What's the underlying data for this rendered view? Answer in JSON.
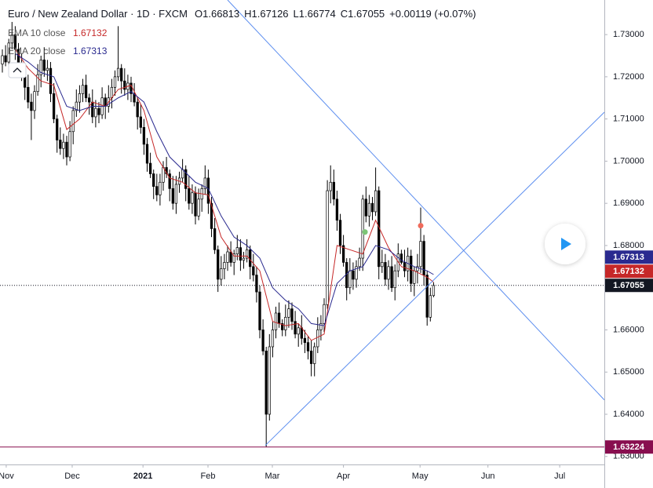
{
  "chart_data": {
    "type": "candlestick",
    "title": "Euro / New Zealand Dollar · 1D · FXCM",
    "ohlc_prefixes": [
      "O",
      "H",
      "L",
      "C"
    ],
    "change": "+0.00119 (+0.07%)",
    "xlim": [
      -0.732,
      187.07
    ],
    "ylim": [
      1.6281,
      1.7382
    ],
    "xticks": [
      {
        "value": 1.2,
        "label": "Nov"
      },
      {
        "value": 21.7,
        "label": "Dec"
      },
      {
        "value": 43.7,
        "label": "2021"
      },
      {
        "value": 63.9,
        "label": "Feb"
      },
      {
        "value": 83.9,
        "label": "Mar"
      },
      {
        "value": 106,
        "label": "Apr"
      },
      {
        "value": 129.8,
        "label": "May"
      },
      {
        "value": 150.9,
        "label": "Jun"
      },
      {
        "value": 173.2,
        "label": "Jul"
      }
    ],
    "yticks": [
      {
        "value": 1.63,
        "label": "1.63000"
      },
      {
        "value": 1.64,
        "label": "1.64000"
      },
      {
        "value": 1.65,
        "label": "1.65000"
      },
      {
        "value": 1.66,
        "label": "1.66000"
      },
      {
        "value": 1.67,
        "label": "1.67000"
      },
      {
        "value": 1.68,
        "label": "1.68000"
      },
      {
        "value": 1.69,
        "label": "1.69000"
      },
      {
        "value": 1.7,
        "label": "1.70000"
      },
      {
        "value": 1.71,
        "label": "1.71000"
      },
      {
        "value": 1.72,
        "label": "1.72000"
      },
      {
        "value": 1.73,
        "label": "1.73000"
      }
    ],
    "up_color": "#ffffff",
    "down_color": "#000000",
    "outline_color": "#000000",
    "candles": {
      "open": [
        1.723,
        1.725,
        1.7235,
        1.728,
        1.73,
        1.7265,
        1.723,
        1.72,
        1.7175,
        1.714,
        1.712,
        1.7165,
        1.7205,
        1.724,
        1.7215,
        1.722,
        1.716,
        1.71,
        1.705,
        1.703,
        1.7045,
        1.701,
        1.707,
        1.712,
        1.714,
        1.716,
        1.718,
        1.715,
        1.714,
        1.7105,
        1.7125,
        1.711,
        1.715,
        1.713,
        1.715,
        1.7175,
        1.72,
        1.722,
        1.719,
        1.717,
        1.7185,
        1.716,
        1.714,
        1.7105,
        1.708,
        1.704,
        1.6995,
        1.697,
        1.694,
        1.692,
        1.695,
        1.6985,
        1.697,
        1.6935,
        1.69,
        1.6945,
        1.696,
        1.698,
        1.6935,
        1.69,
        1.6925,
        1.687,
        1.691,
        1.6935,
        1.696,
        1.69,
        1.684,
        1.679,
        1.672,
        1.6745,
        1.676,
        1.6785,
        1.676,
        1.678,
        1.6795,
        1.6765,
        1.677,
        1.679,
        1.675,
        1.673,
        1.669,
        1.66,
        1.655,
        1.64,
        1.656,
        1.66,
        1.664,
        1.6615,
        1.66,
        1.663,
        1.665,
        1.662,
        1.659,
        1.6605,
        1.658,
        1.657,
        1.655,
        1.652,
        1.656,
        1.66,
        1.6615,
        1.666,
        1.693,
        1.695,
        1.691,
        1.686,
        1.68,
        1.676,
        1.67,
        1.674,
        1.672,
        1.675,
        1.677,
        1.691,
        1.687,
        1.69,
        1.688,
        1.693,
        1.675,
        1.676,
        1.672,
        1.675,
        1.67,
        1.674,
        1.678,
        1.676,
        1.674,
        1.6775,
        1.671,
        1.674,
        1.675,
        1.681,
        1.673,
        1.663,
        1.66813
      ],
      "high": [
        1.7265,
        1.7275,
        1.729,
        1.733,
        1.732,
        1.728,
        1.7255,
        1.721,
        1.7205,
        1.716,
        1.718,
        1.723,
        1.725,
        1.727,
        1.724,
        1.7235,
        1.7185,
        1.711,
        1.708,
        1.7065,
        1.706,
        1.7095,
        1.713,
        1.717,
        1.718,
        1.7195,
        1.7205,
        1.716,
        1.717,
        1.7145,
        1.714,
        1.7175,
        1.716,
        1.718,
        1.7195,
        1.7215,
        1.732,
        1.723,
        1.722,
        1.7205,
        1.72,
        1.7185,
        1.715,
        1.7135,
        1.71,
        1.7055,
        1.702,
        1.698,
        1.697,
        1.697,
        1.7,
        1.701,
        1.698,
        1.6965,
        1.6965,
        1.6975,
        1.7005,
        1.699,
        1.6965,
        1.6945,
        1.694,
        1.6935,
        1.6945,
        1.699,
        1.698,
        1.6915,
        1.6865,
        1.68,
        1.6775,
        1.678,
        1.68,
        1.681,
        1.679,
        1.6825,
        1.6815,
        1.6785,
        1.6815,
        1.68,
        1.678,
        1.675,
        1.6705,
        1.6625,
        1.656,
        1.659,
        1.662,
        1.6655,
        1.6665,
        1.6625,
        1.666,
        1.667,
        1.6665,
        1.6645,
        1.6615,
        1.6635,
        1.66,
        1.6585,
        1.6575,
        1.657,
        1.663,
        1.6635,
        1.6675,
        1.6955,
        1.699,
        1.698,
        1.693,
        1.6875,
        1.6825,
        1.677,
        1.677,
        1.676,
        1.6765,
        1.6795,
        1.692,
        1.694,
        1.692,
        1.6915,
        1.6985,
        1.694,
        1.679,
        1.678,
        1.6765,
        1.6775,
        1.6755,
        1.6805,
        1.679,
        1.679,
        1.6795,
        1.679,
        1.675,
        1.678,
        1.689,
        1.6825,
        1.674,
        1.67,
        1.67126
      ],
      "low": [
        1.721,
        1.7225,
        1.7205,
        1.7265,
        1.724,
        1.721,
        1.719,
        1.7145,
        1.7125,
        1.705,
        1.71,
        1.7155,
        1.7175,
        1.72,
        1.719,
        1.714,
        1.709,
        1.702,
        1.7015,
        1.7005,
        1.699,
        1.7,
        1.704,
        1.7105,
        1.7115,
        1.714,
        1.714,
        1.711,
        1.709,
        1.708,
        1.709,
        1.71,
        1.71,
        1.7115,
        1.7125,
        1.7155,
        1.719,
        1.716,
        1.7155,
        1.7145,
        1.714,
        1.713,
        1.7075,
        1.7065,
        1.7015,
        1.6975,
        1.696,
        1.691,
        1.6905,
        1.6895,
        1.693,
        1.696,
        1.6905,
        1.6885,
        1.6875,
        1.6925,
        1.695,
        1.6905,
        1.6885,
        1.6875,
        1.685,
        1.686,
        1.688,
        1.692,
        1.6875,
        1.682,
        1.678,
        1.669,
        1.6705,
        1.672,
        1.674,
        1.675,
        1.673,
        1.6765,
        1.674,
        1.6745,
        1.676,
        1.672,
        1.6715,
        1.6665,
        1.658,
        1.654,
        1.63224,
        1.6385,
        1.6535,
        1.658,
        1.6605,
        1.6585,
        1.6585,
        1.6605,
        1.66,
        1.658,
        1.656,
        1.6565,
        1.6545,
        1.653,
        1.649,
        1.649,
        1.6545,
        1.6575,
        1.6595,
        1.665,
        1.69,
        1.6895,
        1.6835,
        1.678,
        1.675,
        1.667,
        1.6685,
        1.6695,
        1.67,
        1.674,
        1.674,
        1.6855,
        1.6845,
        1.686,
        1.687,
        1.672,
        1.6735,
        1.6705,
        1.6695,
        1.669,
        1.667,
        1.6725,
        1.6755,
        1.6725,
        1.6715,
        1.669,
        1.668,
        1.671,
        1.6735,
        1.6705,
        1.661,
        1.662,
        1.66774
      ],
      "close": [
        1.725,
        1.7235,
        1.728,
        1.73,
        1.7265,
        1.723,
        1.72,
        1.7175,
        1.714,
        1.712,
        1.7165,
        1.7205,
        1.724,
        1.7215,
        1.722,
        1.716,
        1.71,
        1.705,
        1.703,
        1.7045,
        1.701,
        1.707,
        1.712,
        1.714,
        1.716,
        1.718,
        1.715,
        1.714,
        1.7105,
        1.7125,
        1.711,
        1.715,
        1.713,
        1.715,
        1.7175,
        1.72,
        1.722,
        1.719,
        1.717,
        1.7185,
        1.716,
        1.714,
        1.7105,
        1.708,
        1.704,
        1.6995,
        1.697,
        1.694,
        1.692,
        1.695,
        1.6985,
        1.697,
        1.6935,
        1.69,
        1.6945,
        1.696,
        1.698,
        1.6935,
        1.69,
        1.6925,
        1.687,
        1.691,
        1.6935,
        1.696,
        1.69,
        1.684,
        1.679,
        1.672,
        1.6745,
        1.676,
        1.6785,
        1.676,
        1.678,
        1.6795,
        1.6765,
        1.677,
        1.679,
        1.675,
        1.673,
        1.669,
        1.66,
        1.655,
        1.64,
        1.656,
        1.66,
        1.664,
        1.6615,
        1.66,
        1.663,
        1.665,
        1.662,
        1.659,
        1.6605,
        1.658,
        1.657,
        1.655,
        1.652,
        1.656,
        1.66,
        1.6615,
        1.666,
        1.693,
        1.695,
        1.691,
        1.686,
        1.68,
        1.676,
        1.67,
        1.674,
        1.672,
        1.675,
        1.677,
        1.691,
        1.687,
        1.69,
        1.688,
        1.693,
        1.675,
        1.676,
        1.672,
        1.675,
        1.67,
        1.674,
        1.678,
        1.676,
        1.674,
        1.6775,
        1.671,
        1.674,
        1.675,
        1.681,
        1.673,
        1.663,
        1.66813,
        1.67055
      ]
    },
    "ema": [
      {
        "name": "EMA 10 close",
        "color": "#c62828",
        "x": [
          4,
          8,
          12,
          16,
          20,
          24,
          28,
          32,
          36,
          40,
          44,
          48,
          52,
          56,
          60,
          64,
          68,
          72,
          76,
          80,
          84,
          88,
          92,
          96,
          100,
          104,
          108,
          112,
          116,
          120,
          124,
          128,
          132,
          134
        ],
        "values": [
          1.7265,
          1.722,
          1.719,
          1.718,
          1.7075,
          1.71,
          1.714,
          1.713,
          1.717,
          1.718,
          1.712,
          1.701,
          1.696,
          1.695,
          1.6925,
          1.692,
          1.682,
          1.6775,
          1.6775,
          1.674,
          1.662,
          1.661,
          1.6615,
          1.6575,
          1.659,
          1.68,
          1.679,
          1.678,
          1.686,
          1.6795,
          1.675,
          1.674,
          1.6725,
          1.67132
        ]
      },
      {
        "name": "EMA 20 close",
        "color": "#2a2a8f",
        "x": [
          4,
          8,
          12,
          16,
          20,
          24,
          28,
          32,
          36,
          40,
          44,
          48,
          52,
          56,
          60,
          64,
          68,
          72,
          76,
          80,
          84,
          88,
          92,
          96,
          100,
          104,
          108,
          112,
          116,
          120,
          124,
          128,
          132,
          134
        ],
        "values": [
          1.7255,
          1.7235,
          1.721,
          1.72,
          1.713,
          1.712,
          1.713,
          1.713,
          1.715,
          1.7165,
          1.714,
          1.707,
          1.701,
          1.698,
          1.695,
          1.6935,
          1.687,
          1.682,
          1.68,
          1.677,
          1.67,
          1.667,
          1.665,
          1.6615,
          1.661,
          1.671,
          1.674,
          1.675,
          1.68,
          1.679,
          1.6765,
          1.675,
          1.674,
          1.67313
        ]
      }
    ],
    "trendlines": [
      {
        "color": "#5b8def",
        "x": [
          70,
          187.07
        ],
        "y": [
          1.7382,
          1.6434
        ]
      },
      {
        "color": "#5b8def",
        "x": [
          81.7,
          187.07
        ],
        "y": [
          1.6326,
          1.7116
        ]
      }
    ],
    "markers": [
      {
        "color": "#7cc576",
        "x": 112.7,
        "y": 1.6832
      },
      {
        "color": "#ef6b5b",
        "x": 130,
        "y": 1.6847
      }
    ],
    "last_price_color": "#131722",
    "low_line_color": "#880e4f"
  }
}
